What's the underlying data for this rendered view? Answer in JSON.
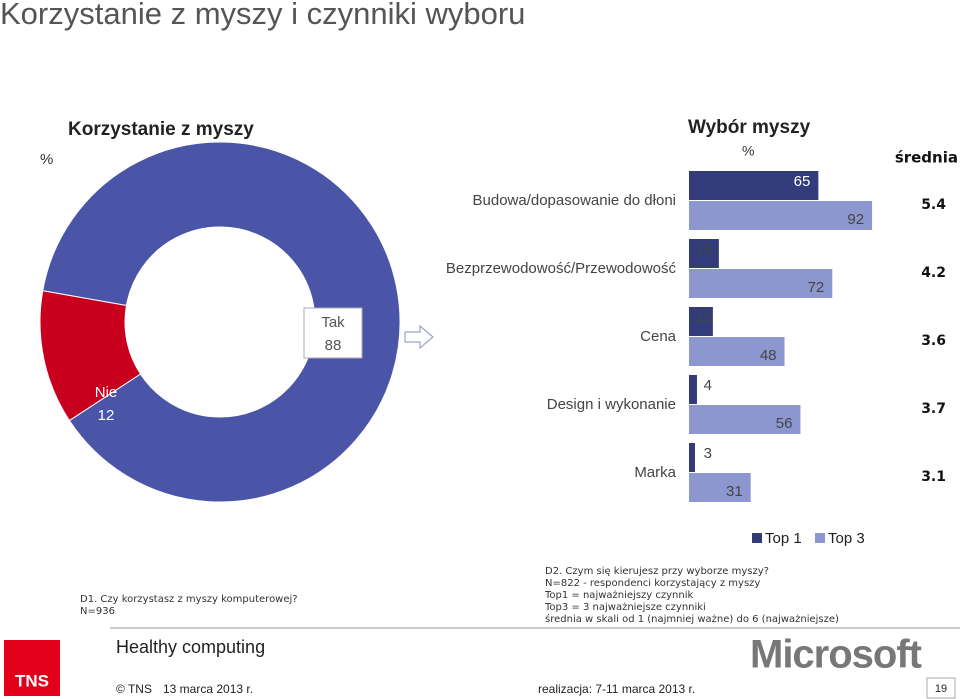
{
  "title": "Korzystanie z myszy i czynniki wyboru",
  "chart_data": [
    {
      "type": "pie",
      "donut": true,
      "title": "Korzystanie z myszy",
      "unit": "%",
      "categories": [
        "Tak",
        "Nie"
      ],
      "values": [
        88,
        12
      ],
      "colors": [
        "#4a55a8",
        "#c8001e"
      ]
    },
    {
      "type": "bar",
      "orientation": "horizontal",
      "title": "Wybór myszy",
      "unit": "%",
      "categories": [
        "Budowa/dopasowanie do dłoni",
        "Bezprzewodowość/Przewodowość",
        "Cena",
        "Design i wykonanie",
        "Marka"
      ],
      "series": [
        {
          "name": "Top 1",
          "color": "#323c7b",
          "values": [
            65,
            15,
            12,
            4,
            3
          ]
        },
        {
          "name": "Top 3",
          "color": "#8c96cf",
          "values": [
            92,
            72,
            48,
            56,
            31
          ]
        }
      ],
      "mean_label": "średnia",
      "means": [
        5.4,
        4.2,
        3.6,
        3.7,
        3.1
      ]
    }
  ],
  "notes": {
    "d1": [
      "D1. Czy korzystasz z myszy komputerowej?",
      "N=936"
    ],
    "d2": [
      "D2. Czym się kierujesz przy wyborze myszy?",
      "N=822 - respondenci korzystający z myszy",
      "Top1 = najważniejszy czynnik",
      "Top3 = 3 najważniejsze czynniki",
      "średnia w skali od 1 (najmniej ważne) do 6 (najważniejsze)"
    ]
  },
  "footer": {
    "tagline": "Healthy computing",
    "logo": "TNS",
    "copyright": "© TNS",
    "date": "13 marca 2013 r.",
    "fieldwork": "realizacja: 7-11 marca 2013 r.",
    "brand": "Microsoft",
    "page": "19"
  }
}
